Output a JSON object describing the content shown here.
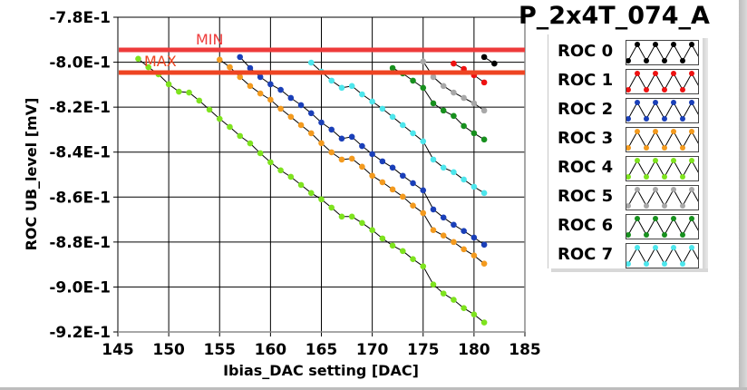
{
  "chart_data": {
    "type": "line",
    "title": "P_2x4T_074_A",
    "xlabel": "Ibias_DAC setting [DAC]",
    "ylabel": "ROC UB_level [mV]",
    "xlim": [
      145,
      185
    ],
    "ylim": [
      -0.92,
      -0.78
    ],
    "x_ticks": [
      145,
      150,
      155,
      160,
      165,
      170,
      175,
      180,
      185
    ],
    "x_tick_labels": [
      "145",
      "150",
      "155",
      "160",
      "165",
      "170",
      "175",
      "180",
      "185"
    ],
    "y_ticks": [
      -0.78,
      -0.8,
      -0.82,
      -0.84,
      -0.86,
      -0.88,
      -0.9,
      -0.92
    ],
    "y_tick_labels": [
      "-7.8E-1",
      "-8.0E-1",
      "-8.2E-1",
      "-8.4E-1",
      "-8.6E-1",
      "-8.8E-1",
      "-9.0E-1",
      "-9.2E-1"
    ],
    "grid": true,
    "legend_position": "right",
    "limits": [
      {
        "name": "MIN",
        "value": -0.7945,
        "color": "#ee3b3b"
      },
      {
        "name": "MAX",
        "value": -0.8046,
        "color": "#ee4422"
      }
    ],
    "series": [
      {
        "name": "ROC 0",
        "color": "#000000",
        "x": [
          181,
          182
        ],
        "y": [
          -0.7977,
          -0.8006
        ]
      },
      {
        "name": "ROC 1",
        "color": "#ee1111",
        "x": [
          178,
          179,
          180,
          181
        ],
        "y": [
          -0.8006,
          -0.803,
          -0.8058,
          -0.809
        ]
      },
      {
        "name": "ROC 2",
        "color": "#1a3fb8",
        "x": [
          157,
          158,
          159,
          160,
          161,
          162,
          163,
          164,
          165,
          166,
          167,
          168,
          169,
          170,
          171,
          172,
          173,
          174,
          175,
          176,
          177,
          178,
          179,
          180,
          181
        ],
        "y": [
          -0.7977,
          -0.8026,
          -0.8066,
          -0.8098,
          -0.8123,
          -0.8159,
          -0.8191,
          -0.8227,
          -0.8268,
          -0.83,
          -0.834,
          -0.8332,
          -0.8373,
          -0.8409,
          -0.8441,
          -0.8469,
          -0.8505,
          -0.8538,
          -0.857,
          -0.8655,
          -0.8691,
          -0.8723,
          -0.8751,
          -0.878,
          -0.8812
        ]
      },
      {
        "name": "ROC 3",
        "color": "#f39a1e",
        "x": [
          155,
          156,
          157,
          158,
          159,
          160,
          161,
          162,
          163,
          164,
          165,
          166,
          167,
          168,
          169,
          170,
          171,
          172,
          173,
          174,
          175,
          176,
          177,
          178,
          179,
          180,
          181
        ],
        "y": [
          -0.7989,
          -0.8022,
          -0.8066,
          -0.8106,
          -0.8139,
          -0.8167,
          -0.8207,
          -0.8243,
          -0.828,
          -0.8316,
          -0.836,
          -0.8401,
          -0.8433,
          -0.8429,
          -0.8465,
          -0.8505,
          -0.8534,
          -0.8566,
          -0.8598,
          -0.8638,
          -0.8671,
          -0.8747,
          -0.8771,
          -0.88,
          -0.8832,
          -0.886,
          -0.8896
        ]
      },
      {
        "name": "ROC 4",
        "color": "#7ee31e",
        "x": [
          147,
          148,
          149,
          150,
          151,
          152,
          153,
          154,
          155,
          156,
          157,
          158,
          159,
          160,
          161,
          162,
          163,
          164,
          165,
          166,
          167,
          168,
          169,
          170,
          171,
          172,
          173,
          174,
          175,
          176,
          177,
          178,
          179,
          180,
          181
        ],
        "y": [
          -0.7985,
          -0.8022,
          -0.8054,
          -0.8098,
          -0.8131,
          -0.8135,
          -0.8171,
          -0.8211,
          -0.8252,
          -0.8288,
          -0.8328,
          -0.8361,
          -0.8405,
          -0.8445,
          -0.8481,
          -0.851,
          -0.8546,
          -0.8582,
          -0.861,
          -0.8647,
          -0.8687,
          -0.8687,
          -0.8715,
          -0.8747,
          -0.8784,
          -0.8816,
          -0.884,
          -0.8876,
          -0.8908,
          -0.8989,
          -0.9029,
          -0.9057,
          -0.9094,
          -0.9122,
          -0.9158
        ]
      },
      {
        "name": "ROC 5",
        "color": "#a8a8a8",
        "x": [
          175,
          176,
          177,
          178,
          179,
          180,
          181
        ],
        "y": [
          -0.7997,
          -0.8066,
          -0.8106,
          -0.8135,
          -0.8159,
          -0.8183,
          -0.8215
        ]
      },
      {
        "name": "ROC 6",
        "color": "#17901e",
        "x": [
          172,
          173,
          174,
          175,
          176,
          177,
          178,
          179,
          180,
          181
        ],
        "y": [
          -0.8026,
          -0.805,
          -0.8082,
          -0.8114,
          -0.8183,
          -0.8215,
          -0.8239,
          -0.8284,
          -0.8316,
          -0.8344
        ]
      },
      {
        "name": "ROC 7",
        "color": "#4de6ec",
        "x": [
          164,
          165,
          166,
          167,
          168,
          169,
          170,
          171,
          172,
          173,
          174,
          175,
          176,
          177,
          178,
          179,
          180,
          181
        ],
        "y": [
          -0.8002,
          -0.8042,
          -0.8082,
          -0.8114,
          -0.8106,
          -0.8143,
          -0.8175,
          -0.8207,
          -0.8243,
          -0.828,
          -0.8316,
          -0.8352,
          -0.8433,
          -0.8469,
          -0.8489,
          -0.8522,
          -0.8554,
          -0.8582
        ]
      }
    ]
  }
}
